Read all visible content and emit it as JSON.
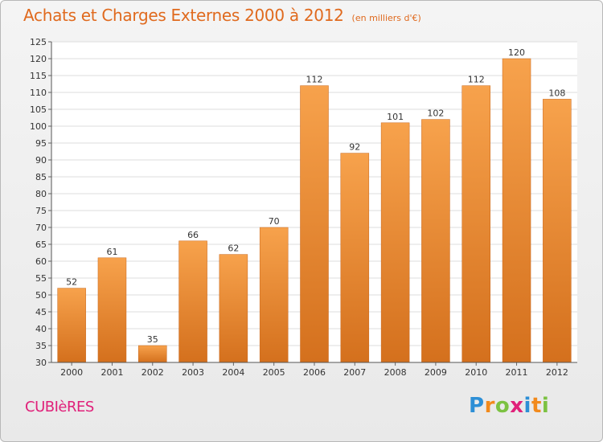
{
  "chart_data": {
    "type": "bar",
    "title": "Achats et Charges Externes 2000 à 2012",
    "subtitle": "(en milliers d'€)",
    "categories": [
      "2000",
      "2001",
      "2002",
      "2003",
      "2004",
      "2005",
      "2006",
      "2007",
      "2008",
      "2009",
      "2010",
      "2011",
      "2012"
    ],
    "values": [
      52,
      61,
      35,
      66,
      62,
      70,
      112,
      92,
      101,
      102,
      112,
      120,
      108
    ],
    "ylim": [
      30,
      125
    ],
    "yticks": [
      30,
      35,
      40,
      45,
      50,
      55,
      60,
      65,
      70,
      75,
      80,
      85,
      90,
      95,
      100,
      105,
      110,
      115,
      120,
      125
    ],
    "xlabel": "",
    "ylabel": "",
    "grid": true,
    "bar_color": "#f0902f"
  },
  "footer": {
    "commune": "CUBIèRES",
    "logo_letters": [
      {
        "ch": "P",
        "color": "#2d8fd6"
      },
      {
        "ch": "r",
        "color": "#f28a1c"
      },
      {
        "ch": "o",
        "color": "#7cc242"
      },
      {
        "ch": "x",
        "color": "#e0217a"
      },
      {
        "ch": "i",
        "color": "#2d8fd6"
      },
      {
        "ch": "t",
        "color": "#f28a1c"
      },
      {
        "ch": "i",
        "color": "#7cc242"
      }
    ]
  }
}
